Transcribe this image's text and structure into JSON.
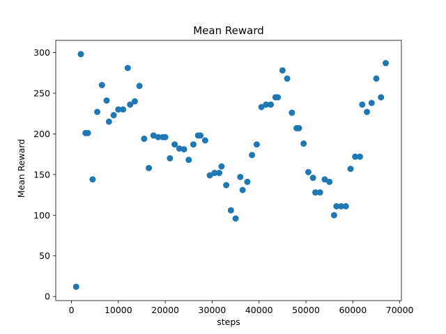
{
  "chart_data": {
    "type": "scatter",
    "title": "Mean Reward",
    "xlabel": "steps",
    "ylabel": "Mean Reward",
    "xlim": [
      -3350,
      70350
    ],
    "ylim": [
      -5,
      315
    ],
    "xticks": [
      0,
      10000,
      20000,
      30000,
      40000,
      50000,
      60000,
      70000
    ],
    "xtick_labels": [
      "0",
      "10000",
      "20000",
      "30000",
      "40000",
      "50000",
      "60000",
      "70000"
    ],
    "yticks": [
      0,
      50,
      100,
      150,
      200,
      250,
      300
    ],
    "ytick_labels": [
      "0",
      "50",
      "100",
      "150",
      "200",
      "250",
      "300"
    ],
    "grid": false,
    "marker_color": "#1f77b4",
    "series": [
      {
        "x": [
          1000,
          2000,
          3000,
          3500,
          4500,
          5500,
          6500,
          7500,
          8000,
          9000,
          10000,
          11000,
          12000,
          12500,
          13500,
          14500,
          15500,
          16500,
          17500,
          18500,
          19500,
          20000,
          21000,
          22000,
          23000,
          24000,
          25000,
          26000,
          27000,
          27500,
          28500,
          29500,
          30500,
          31500,
          32000,
          33000,
          34000,
          35000,
          36000,
          36500,
          37500,
          38500,
          39500,
          40500,
          41500,
          42500,
          43500,
          44000,
          45000,
          46000,
          47000,
          48000,
          48500,
          49500,
          50500,
          51500,
          52000,
          53000,
          54000,
          55000,
          56000,
          56500,
          57500,
          58500,
          59500,
          60500,
          61500,
          62000,
          63000,
          64000,
          65000,
          66000,
          67000
        ],
        "y": [
          12,
          298,
          201,
          201,
          144,
          227,
          260,
          241,
          215,
          223,
          230,
          230,
          281,
          236,
          240,
          259,
          194,
          158,
          198,
          196,
          196,
          196,
          170,
          187,
          182,
          181,
          168,
          187,
          198,
          198,
          192,
          149,
          152,
          152,
          160,
          137,
          106,
          96,
          147,
          131,
          141,
          174,
          187,
          233,
          236,
          236,
          245,
          245,
          278,
          268,
          226,
          207,
          207,
          188,
          153,
          146,
          128,
          128,
          144,
          141,
          100,
          111,
          111,
          111,
          157,
          172,
          172,
          236,
          227,
          238,
          268,
          245,
          287
        ]
      }
    ]
  }
}
